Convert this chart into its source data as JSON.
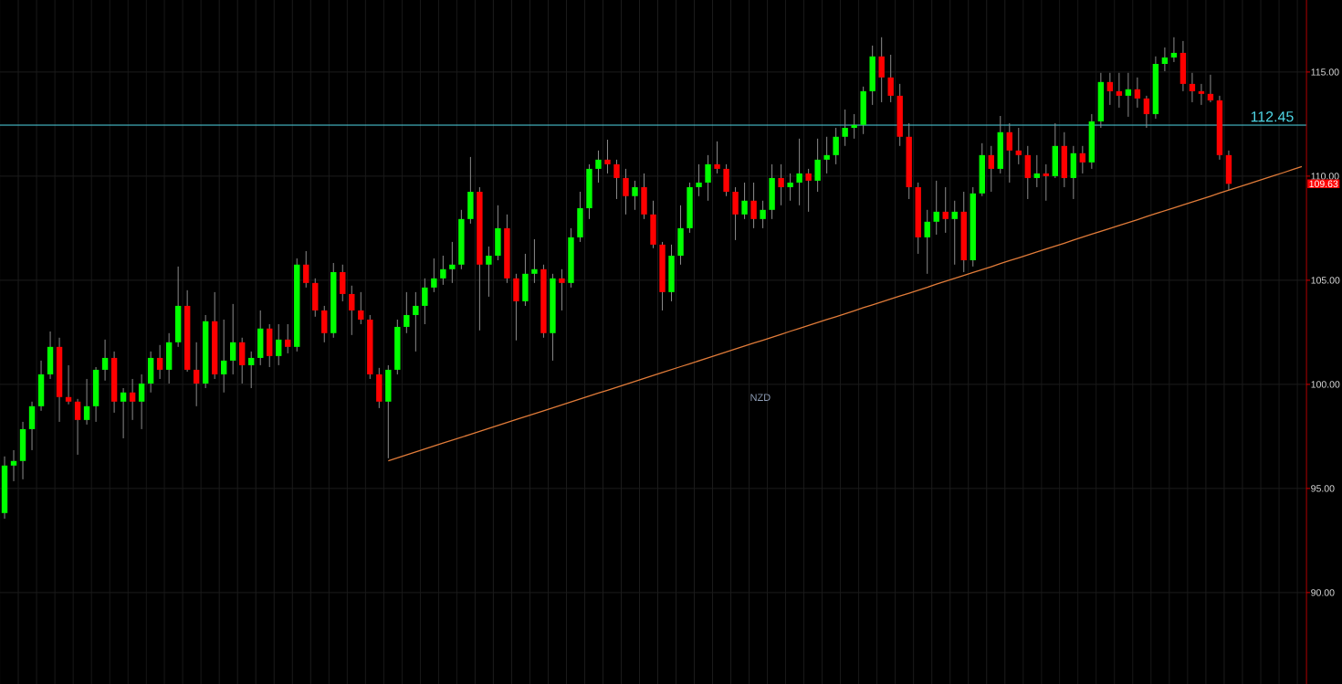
{
  "chart_data": {
    "type": "candlestick",
    "title": "NZD",
    "categories": [
      null,
      null,
      null,
      null,
      null,
      null,
      null,
      null,
      null,
      null,
      null,
      null,
      null,
      null,
      null,
      null,
      null,
      null,
      null,
      null,
      null,
      null,
      null,
      null,
      null,
      null,
      null,
      null,
      null,
      null,
      null,
      null,
      null,
      null,
      null,
      null,
      null,
      null,
      null,
      null,
      null,
      null,
      null,
      null,
      null,
      null,
      null,
      null,
      null,
      null,
      null,
      null,
      null,
      null,
      null,
      null,
      null,
      null,
      null,
      null,
      null,
      null,
      null,
      null,
      null,
      null,
      null,
      null,
      null,
      null,
      null,
      null,
      null,
      null,
      null,
      null,
      null,
      null,
      null,
      null,
      null,
      null,
      null,
      null,
      null,
      null,
      null,
      null,
      null,
      null,
      null,
      null,
      null,
      null,
      null,
      null,
      null,
      null,
      null,
      null,
      null,
      null,
      null,
      null,
      null,
      null,
      null,
      null,
      null,
      null,
      null,
      null,
      null,
      null,
      null,
      null,
      null,
      null,
      null,
      null,
      null,
      null,
      null,
      null,
      null,
      null,
      null,
      null,
      null,
      null,
      null,
      null,
      null,
      null,
      null,
      null,
      null,
      null,
      null,
      null,
      null,
      null,
      null
    ],
    "ohlc": [
      [
        93.82,
        96.54,
        93.55,
        96.1
      ],
      [
        96.1,
        96.84,
        95.35,
        96.32
      ],
      [
        96.32,
        98.2,
        95.44,
        97.85
      ],
      [
        97.85,
        99.17,
        96.84,
        98.95
      ],
      [
        98.95,
        101.14,
        98.73,
        100.48
      ],
      [
        100.48,
        102.54,
        100.26,
        101.8
      ],
      [
        101.8,
        102.24,
        98.2,
        99.39
      ],
      [
        99.39,
        100.92,
        99.04,
        99.17
      ],
      [
        99.17,
        99.3,
        96.62,
        98.29
      ],
      [
        98.29,
        100.26,
        98.07,
        98.95
      ],
      [
        98.95,
        100.83,
        98.2,
        100.7
      ],
      [
        100.7,
        102.15,
        100.18,
        101.27
      ],
      [
        101.27,
        101.58,
        98.64,
        99.17
      ],
      [
        99.17,
        99.82,
        97.41,
        99.61
      ],
      [
        99.61,
        100.26,
        98.29,
        99.17
      ],
      [
        99.17,
        100.48,
        97.85,
        100.04
      ],
      [
        100.04,
        101.58,
        99.61,
        101.27
      ],
      [
        101.27,
        101.89,
        100.26,
        100.7
      ],
      [
        100.7,
        102.46,
        100.04,
        102.02
      ],
      [
        102.02,
        105.66,
        101.8,
        103.77
      ],
      [
        103.77,
        104.52,
        100.61,
        100.7
      ],
      [
        100.7,
        102.02,
        98.95,
        100.04
      ],
      [
        100.04,
        103.33,
        99.82,
        103.03
      ],
      [
        103.03,
        104.43,
        100.26,
        100.48
      ],
      [
        100.48,
        103.11,
        99.61,
        101.14
      ],
      [
        101.14,
        103.86,
        100.48,
        102.02
      ],
      [
        102.02,
        102.24,
        100.04,
        100.92
      ],
      [
        100.92,
        101.58,
        99.82,
        101.27
      ],
      [
        101.27,
        103.55,
        100.92,
        102.68
      ],
      [
        102.68,
        102.89,
        100.83,
        101.36
      ],
      [
        101.36,
        102.89,
        100.92,
        102.15
      ],
      [
        102.15,
        102.89,
        101.49,
        101.8
      ],
      [
        101.8,
        106.05,
        101.58,
        105.75
      ],
      [
        105.75,
        106.4,
        104.65,
        104.87
      ],
      [
        104.87,
        105.09,
        103.25,
        103.55
      ],
      [
        103.55,
        103.77,
        102.02,
        102.46
      ],
      [
        102.46,
        105.83,
        102.24,
        105.39
      ],
      [
        105.39,
        105.75,
        103.99,
        104.34
      ],
      [
        104.34,
        104.74,
        102.37,
        103.55
      ],
      [
        103.55,
        104.43,
        102.89,
        103.11
      ],
      [
        103.11,
        103.33,
        100.26,
        100.48
      ],
      [
        100.48,
        100.79,
        98.86,
        99.17
      ],
      [
        99.17,
        100.92,
        96.45,
        100.7
      ],
      [
        100.7,
        103.11,
        100.48,
        102.76
      ],
      [
        102.76,
        104.43,
        102.46,
        103.33
      ],
      [
        103.33,
        104.43,
        101.58,
        103.77
      ],
      [
        103.77,
        105.09,
        102.89,
        104.65
      ],
      [
        104.65,
        106.05,
        104.43,
        105.09
      ],
      [
        105.09,
        106.18,
        104.78,
        105.53
      ],
      [
        105.53,
        106.84,
        104.87,
        105.75
      ],
      [
        105.75,
        108.38,
        105.53,
        107.94
      ],
      [
        107.94,
        110.92,
        107.72,
        109.25
      ],
      [
        109.25,
        109.47,
        102.59,
        105.75
      ],
      [
        105.75,
        106.62,
        104.21,
        106.18
      ],
      [
        106.18,
        108.6,
        105.96,
        107.5
      ],
      [
        107.5,
        108.16,
        104.87,
        105.09
      ],
      [
        105.09,
        105.31,
        102.11,
        103.99
      ],
      [
        103.99,
        106.27,
        103.77,
        105.31
      ],
      [
        105.31,
        106.97,
        104.87,
        105.53
      ],
      [
        105.53,
        105.75,
        102.24,
        102.46
      ],
      [
        102.46,
        105.31,
        101.14,
        105.09
      ],
      [
        105.09,
        105.53,
        103.55,
        104.87
      ],
      [
        104.87,
        107.5,
        104.65,
        107.06
      ],
      [
        107.06,
        109.25,
        106.84,
        108.46
      ],
      [
        108.46,
        110.57,
        107.94,
        110.35
      ],
      [
        110.35,
        111.23,
        109.69,
        110.79
      ],
      [
        110.79,
        111.75,
        110.13,
        110.57
      ],
      [
        110.57,
        110.79,
        108.9,
        109.91
      ],
      [
        109.91,
        110.35,
        108.16,
        109.04
      ],
      [
        109.04,
        109.78,
        108.38,
        109.47
      ],
      [
        109.47,
        110.13,
        107.94,
        108.16
      ],
      [
        108.16,
        108.82,
        106.54,
        106.71
      ],
      [
        106.71,
        106.84,
        103.55,
        104.43
      ],
      [
        104.43,
        106.71,
        103.99,
        106.18
      ],
      [
        106.18,
        108.6,
        105.75,
        107.5
      ],
      [
        107.5,
        109.69,
        107.28,
        109.47
      ],
      [
        109.47,
        110.57,
        109.04,
        109.69
      ],
      [
        109.69,
        111.01,
        108.82,
        110.57
      ],
      [
        110.57,
        111.67,
        110.13,
        110.35
      ],
      [
        110.35,
        110.57,
        109.04,
        109.25
      ],
      [
        109.25,
        109.47,
        106.93,
        108.16
      ],
      [
        108.16,
        109.69,
        107.94,
        108.82
      ],
      [
        108.82,
        109.69,
        107.5,
        107.94
      ],
      [
        107.94,
        108.82,
        107.5,
        108.38
      ],
      [
        108.38,
        110.57,
        107.94,
        109.91
      ],
      [
        109.91,
        110.57,
        108.6,
        109.47
      ],
      [
        109.47,
        110.13,
        108.82,
        109.69
      ],
      [
        109.69,
        111.8,
        108.6,
        110.13
      ],
      [
        110.13,
        110.35,
        108.29,
        109.78
      ],
      [
        109.78,
        111.8,
        109.25,
        110.79
      ],
      [
        110.79,
        111.89,
        110.13,
        111.01
      ],
      [
        111.01,
        112.32,
        110.57,
        111.89
      ],
      [
        111.89,
        113.2,
        111.45,
        112.32
      ],
      [
        112.32,
        112.98,
        111.8,
        112.46
      ],
      [
        112.46,
        114.3,
        112.02,
        114.08
      ],
      [
        114.08,
        116.27,
        113.42,
        115.75
      ],
      [
        115.75,
        116.67,
        113.55,
        114.74
      ],
      [
        114.74,
        115.83,
        113.55,
        113.86
      ],
      [
        113.86,
        114.43,
        111.45,
        111.89
      ],
      [
        111.89,
        112.54,
        108.9,
        109.47
      ],
      [
        109.47,
        109.69,
        106.27,
        107.06
      ],
      [
        107.06,
        108.38,
        105.31,
        107.81
      ],
      [
        107.81,
        109.78,
        107.19,
        108.29
      ],
      [
        108.29,
        109.47,
        107.28,
        107.94
      ],
      [
        107.94,
        108.82,
        105.75,
        108.29
      ],
      [
        108.29,
        109.25,
        105.39,
        105.96
      ],
      [
        105.96,
        109.47,
        105.66,
        109.17
      ],
      [
        109.17,
        111.58,
        109.04,
        111.01
      ],
      [
        111.01,
        111.45,
        109.25,
        110.35
      ],
      [
        110.35,
        112.89,
        110.13,
        112.11
      ],
      [
        112.11,
        112.54,
        109.69,
        111.23
      ],
      [
        111.23,
        112.32,
        110.57,
        111.01
      ],
      [
        111.01,
        111.45,
        108.9,
        109.91
      ],
      [
        109.91,
        111.01,
        109.47,
        110.13
      ],
      [
        110.13,
        110.57,
        108.82,
        110.0
      ],
      [
        110.0,
        112.54,
        109.91,
        111.45
      ],
      [
        111.45,
        112.11,
        109.47,
        109.91
      ],
      [
        109.91,
        111.45,
        108.9,
        111.1
      ],
      [
        111.1,
        111.45,
        110.13,
        110.66
      ],
      [
        110.66,
        112.98,
        110.35,
        112.63
      ],
      [
        112.63,
        114.96,
        112.32,
        114.52
      ],
      [
        114.52,
        114.96,
        113.42,
        114.08
      ],
      [
        114.08,
        114.96,
        113.29,
        113.86
      ],
      [
        113.86,
        114.96,
        112.85,
        114.17
      ],
      [
        114.17,
        114.74,
        113.29,
        113.73
      ],
      [
        113.73,
        113.86,
        112.32,
        112.98
      ],
      [
        112.98,
        115.75,
        112.76,
        115.39
      ],
      [
        115.39,
        116.18,
        115.04,
        115.7
      ],
      [
        115.7,
        116.67,
        115.48,
        115.92
      ],
      [
        115.92,
        116.49,
        114.08,
        114.43
      ],
      [
        114.43,
        114.96,
        113.55,
        114.08
      ],
      [
        114.08,
        114.43,
        113.42,
        113.95
      ],
      [
        113.95,
        114.87,
        113.55,
        113.64
      ],
      [
        113.64,
        113.86,
        110.79,
        111.01
      ],
      [
        111.01,
        111.23,
        109.34,
        109.63
      ],
      null,
      null,
      null,
      null,
      null,
      null,
      null,
      null
    ],
    "colors": [
      "#00ff00",
      "#00ff00",
      "#00ff00",
      "#00ff00",
      "#00ff00",
      "#00ff00",
      "#ff0000",
      "#ff0000",
      "#ff0000",
      "#00ff00",
      "#00ff00",
      "#00ff00",
      "#ff0000",
      "#00ff00",
      "#ff0000",
      "#00ff00",
      "#00ff00",
      "#ff0000",
      "#00ff00",
      "#00ff00",
      "#ff0000",
      "#ff0000",
      "#00ff00",
      "#ff0000",
      "#00ff00",
      "#00ff00",
      "#ff0000",
      "#00ff00",
      "#00ff00",
      "#ff0000",
      "#00ff00",
      "#ff0000",
      "#00ff00",
      "#ff0000",
      "#ff0000",
      "#ff0000",
      "#00ff00",
      "#ff0000",
      "#ff0000",
      "#ff0000",
      "#ff0000",
      "#ff0000",
      "#00ff00",
      "#00ff00",
      "#00ff00",
      "#00ff00",
      "#00ff00",
      "#00ff00",
      "#00ff00",
      "#00ff00",
      "#00ff00",
      "#00ff00",
      "#ff0000",
      "#00ff00",
      "#00ff00",
      "#ff0000",
      "#ff0000",
      "#00ff00",
      "#00ff00",
      "#ff0000",
      "#00ff00",
      "#ff0000",
      "#00ff00",
      "#00ff00",
      "#00ff00",
      "#00ff00",
      "#ff0000",
      "#ff0000",
      "#ff0000",
      "#00ff00",
      "#ff0000",
      "#ff0000",
      "#ff0000",
      "#00ff00",
      "#00ff00",
      "#00ff00",
      "#00ff00",
      "#00ff00",
      "#ff0000",
      "#ff0000",
      "#ff0000",
      "#00ff00",
      "#ff0000",
      "#00ff00",
      "#00ff00",
      "#ff0000",
      "#00ff00",
      "#00ff00",
      "#ff0000",
      "#00ff00",
      "#00ff00",
      "#00ff00",
      "#00ff00",
      "#00ff00",
      "#00ff00",
      "#00ff00",
      "#ff0000",
      "#ff0000",
      "#ff0000",
      "#ff0000",
      "#ff0000",
      "#00ff00",
      "#00ff00",
      "#ff0000",
      "#00ff00",
      "#ff0000",
      "#00ff00",
      "#00ff00",
      "#ff0000",
      "#00ff00",
      "#ff0000",
      "#ff0000",
      "#ff0000",
      "#00ff00",
      "#ff0000",
      "#00ff00",
      "#ff0000",
      "#00ff00",
      "#ff0000",
      "#00ff00",
      "#00ff00",
      "#ff0000",
      "#ff0000",
      "#00ff00",
      "#ff0000",
      "#ff0000",
      "#00ff00",
      "#00ff00",
      "#00ff00",
      "#ff0000",
      "#ff0000",
      "#ff0000",
      "#ff0000",
      "#ff0000",
      "#ff0000",
      null,
      null,
      null,
      null,
      null,
      null,
      null,
      null
    ],
    "series": [
      {
        "type": "line",
        "color": "#e07b39",
        "values": [
          null,
          null,
          null,
          null,
          null,
          null,
          null,
          null,
          null,
          null,
          null,
          null,
          null,
          null,
          null,
          null,
          null,
          null,
          null,
          null,
          null,
          null,
          null,
          null,
          null,
          null,
          null,
          null,
          null,
          null,
          null,
          null,
          null,
          null,
          null,
          null,
          null,
          null,
          null,
          null,
          null,
          null,
          96.33,
          96.47,
          96.61,
          96.75,
          96.9,
          97.04,
          97.18,
          97.32,
          97.46,
          97.6,
          97.74,
          97.88,
          98.03,
          98.17,
          98.31,
          98.45,
          98.59,
          98.73,
          98.87,
          99.01,
          99.16,
          99.3,
          99.44,
          99.58,
          99.72,
          99.86,
          100.0,
          100.14,
          100.29,
          100.43,
          100.57,
          100.71,
          100.85,
          100.99,
          101.13,
          101.27,
          101.42,
          101.56,
          101.7,
          101.84,
          101.98,
          102.12,
          102.26,
          102.4,
          102.55,
          102.69,
          102.83,
          102.97,
          103.11,
          103.25,
          103.39,
          103.53,
          103.68,
          103.82,
          103.96,
          104.1,
          104.24,
          104.38,
          104.52,
          104.66,
          104.81,
          104.95,
          105.09,
          105.23,
          105.37,
          105.51,
          105.65,
          105.8,
          105.94,
          106.08,
          106.22,
          106.36,
          106.5,
          106.64,
          106.78,
          106.93,
          107.07,
          107.21,
          107.35,
          107.49,
          107.63,
          107.77,
          107.91,
          108.06,
          108.2,
          108.34,
          108.48,
          108.62,
          108.76,
          108.9,
          109.04,
          109.19,
          109.33,
          109.47,
          109.61,
          109.75,
          109.89,
          110.03,
          110.17,
          110.32,
          110.46
        ]
      }
    ],
    "ylim": [
      85.61,
      118.46
    ],
    "yticks": [
      {
        "value": 90,
        "label": "90.00"
      },
      {
        "value": 95,
        "label": "95.00"
      },
      {
        "value": 100,
        "label": "100.00"
      },
      {
        "value": 105,
        "label": "105.00"
      },
      {
        "value": 110,
        "label": "110.00"
      },
      {
        "value": 115,
        "label": "115.00"
      }
    ],
    "ref_lines": [
      {
        "axis": "y",
        "value": 112.45,
        "label": "112.45",
        "color": "#4fd6e6"
      }
    ],
    "annotations": [
      "109.63"
    ],
    "grid": true,
    "tick_labels": "y"
  }
}
